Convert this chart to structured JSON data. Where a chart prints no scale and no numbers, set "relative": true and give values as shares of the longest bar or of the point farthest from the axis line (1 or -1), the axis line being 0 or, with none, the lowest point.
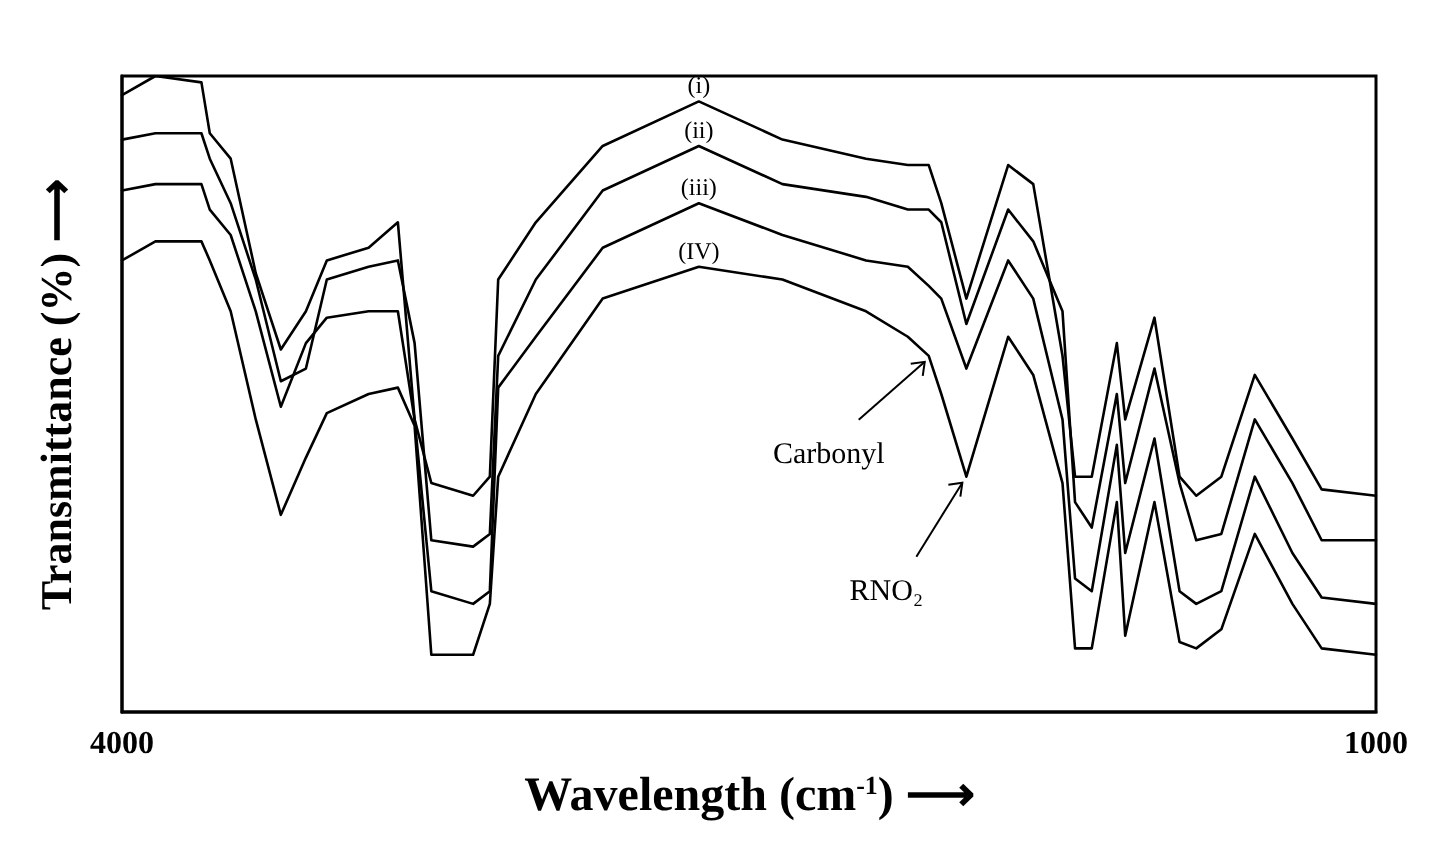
{
  "chart_data": {
    "type": "line",
    "relative": true,
    "xlabel": "Wavelength (cm$^{-1}$) ⟶",
    "ylabel": "Transmittance (%) ⟶",
    "xlim": [
      4000,
      1000
    ],
    "xticks": [
      4000,
      1000
    ],
    "legend": false,
    "grid": false,
    "marker": "none",
    "line_style": "solid",
    "x": [
      4000,
      3920,
      3810,
      3790,
      3740,
      3680,
      3620,
      3560,
      3510,
      3410,
      3340,
      3300,
      3260,
      3160,
      3120,
      3100,
      3010,
      2850,
      2620,
      2420,
      2220,
      2120,
      2070,
      2040,
      1980,
      1880,
      1820,
      1750,
      1720,
      1680,
      1620,
      1600,
      1530,
      1470,
      1430,
      1370,
      1290,
      1200,
      1130,
      1000
    ],
    "series": [
      {
        "name": "(i)",
        "color": "#000000",
        "values": [
          0.97,
          1.0,
          0.99,
          0.91,
          0.87,
          0.69,
          0.57,
          0.63,
          0.71,
          0.73,
          0.77,
          0.46,
          0.36,
          0.34,
          0.37,
          0.68,
          0.77,
          0.89,
          0.96,
          0.9,
          0.87,
          0.86,
          0.86,
          0.8,
          0.65,
          0.86,
          0.83,
          0.56,
          0.37,
          0.37,
          0.58,
          0.46,
          0.62,
          0.37,
          0.34,
          0.37,
          0.53,
          0.43,
          0.35,
          0.34
        ]
      },
      {
        "name": "(ii)",
        "color": "#000000",
        "values": [
          0.9,
          0.91,
          0.91,
          0.87,
          0.8,
          0.68,
          0.52,
          0.54,
          0.68,
          0.7,
          0.71,
          0.58,
          0.27,
          0.26,
          0.28,
          0.56,
          0.68,
          0.82,
          0.89,
          0.83,
          0.81,
          0.79,
          0.79,
          0.77,
          0.61,
          0.79,
          0.74,
          0.63,
          0.33,
          0.29,
          0.5,
          0.36,
          0.54,
          0.36,
          0.27,
          0.28,
          0.46,
          0.36,
          0.27,
          0.27
        ]
      },
      {
        "name": "(iii)",
        "color": "#000000",
        "values": [
          0.82,
          0.83,
          0.83,
          0.79,
          0.75,
          0.63,
          0.48,
          0.58,
          0.62,
          0.63,
          0.63,
          0.46,
          0.19,
          0.17,
          0.19,
          0.51,
          0.59,
          0.73,
          0.8,
          0.75,
          0.71,
          0.7,
          0.67,
          0.65,
          0.54,
          0.71,
          0.65,
          0.46,
          0.21,
          0.19,
          0.42,
          0.25,
          0.43,
          0.19,
          0.17,
          0.19,
          0.37,
          0.25,
          0.18,
          0.17
        ]
      },
      {
        "name": "(IV)",
        "color": "#000000",
        "values": [
          0.71,
          0.74,
          0.74,
          0.71,
          0.63,
          0.46,
          0.31,
          0.4,
          0.47,
          0.5,
          0.51,
          0.45,
          0.09,
          0.09,
          0.17,
          0.37,
          0.5,
          0.65,
          0.7,
          0.68,
          0.63,
          0.59,
          0.56,
          0.5,
          0.37,
          0.59,
          0.53,
          0.36,
          0.1,
          0.1,
          0.33,
          0.12,
          0.33,
          0.11,
          0.1,
          0.13,
          0.28,
          0.17,
          0.1,
          0.09
        ]
      }
    ],
    "annotations": [
      {
        "text": "Carbonyl",
        "x": 2070,
        "y": 0.56
      },
      {
        "text": "RNO₂",
        "x": 1980,
        "y": 0.37
      }
    ]
  }
}
